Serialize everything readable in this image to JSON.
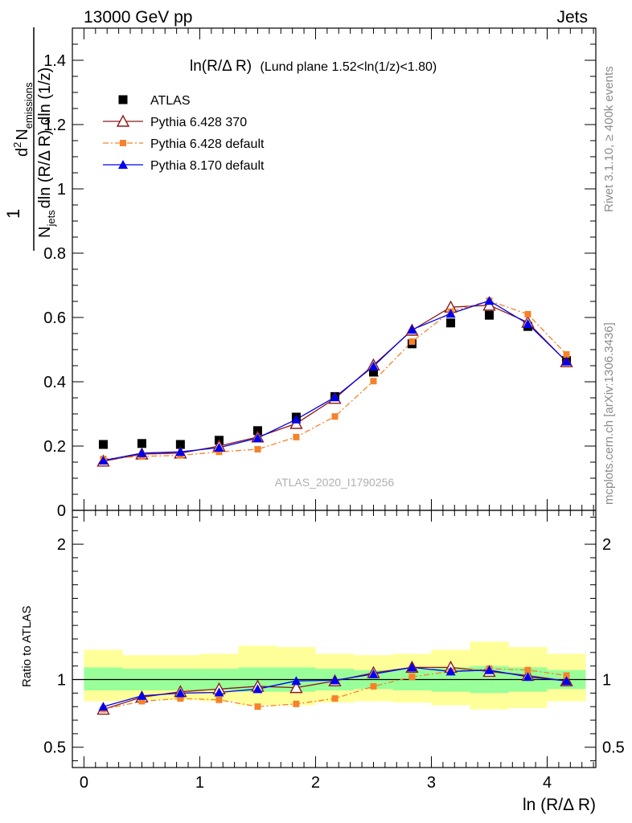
{
  "header": {
    "left": "13000 GeV pp",
    "right": "Jets"
  },
  "side_labels": {
    "rivet": "Rivet 3.1.10, ≥ 400k events",
    "mcplots": "mcplots.cern.ch [arXiv:1306.3436]"
  },
  "watermark": "ATLAS_2020_I1790256",
  "chart_data": [
    {
      "type": "line",
      "panel": "main",
      "title_main": "ln(R/Δ R)",
      "title_rest": "(Lund plane 1.52<ln(1/z)<1.80)",
      "ylabel_parts": {
        "one": "1",
        "d": "d",
        "sup": "2",
        "n": "N",
        "n_sub": "emissions",
        "den_n": "N",
        "den_sub": "jets",
        "den_rest": "dln (R/Δ R) dln (1/z)"
      },
      "xlim": [
        -0.1,
        4.42
      ],
      "ylim": [
        0,
        1.5
      ],
      "yticks": [
        0,
        0.2,
        0.4,
        0.6,
        0.8,
        1,
        1.2,
        1.4
      ],
      "ytick_labels": [
        "0",
        "0.2",
        "0.4",
        "0.6",
        "0.8",
        "1",
        "1.2",
        "1.4"
      ],
      "x": [
        0.167,
        0.5,
        0.833,
        1.167,
        1.5,
        1.833,
        2.167,
        2.5,
        2.833,
        3.167,
        3.5,
        3.833,
        4.167
      ],
      "legend_position": "top-left",
      "series": [
        {
          "name": "ATLAS",
          "style": "data",
          "color": "#000000",
          "values": [
            0.205,
            0.208,
            0.205,
            0.218,
            0.248,
            0.29,
            0.354,
            0.43,
            0.518,
            0.583,
            0.607,
            0.572,
            0.466
          ]
        },
        {
          "name": "Pythia 6.428 370",
          "style": "open-triangle",
          "color": "#8b1a1a",
          "values": [
            0.153,
            0.175,
            0.178,
            0.2,
            0.228,
            0.27,
            0.348,
            0.452,
            0.56,
            0.632,
            0.638,
            0.585,
            0.462
          ]
        },
        {
          "name": "Pythia 6.428 default",
          "style": "orange-square-dashdot",
          "color": "#f5822a",
          "values": [
            0.16,
            0.168,
            0.171,
            0.182,
            0.19,
            0.228,
            0.292,
            0.402,
            0.525,
            0.618,
            0.652,
            0.61,
            0.485
          ]
        },
        {
          "name": "Pythia 8.170 default",
          "style": "filled-triangle",
          "color": "#0000ee",
          "values": [
            0.155,
            0.178,
            0.182,
            0.195,
            0.225,
            0.283,
            0.352,
            0.448,
            0.562,
            0.612,
            0.652,
            0.58,
            0.463
          ]
        }
      ]
    },
    {
      "type": "line",
      "panel": "ratio",
      "ylabel": "Ratio to ATLAS",
      "xlabel": "ln (R/Δ R)",
      "xlim": [
        -0.1,
        4.42
      ],
      "ylim": [
        0.35,
        2.25
      ],
      "xticks": [
        0,
        1,
        2,
        3,
        4
      ],
      "xtick_labels": [
        "0",
        "1",
        "2",
        "3",
        "4"
      ],
      "yticks": [
        0.5,
        1,
        2
      ],
      "ytick_labels": [
        "0.5",
        "1",
        "2"
      ],
      "bin_edges": [
        0,
        0.333,
        0.667,
        1.0,
        1.333,
        1.667,
        2.0,
        2.333,
        2.667,
        3.0,
        3.333,
        3.667,
        4.0,
        4.333
      ],
      "band_inner": {
        "color": "#99ff99",
        "low": [
          0.92,
          0.92,
          0.92,
          0.92,
          0.91,
          0.91,
          0.92,
          0.93,
          0.92,
          0.91,
          0.9,
          0.91,
          0.93
        ],
        "high": [
          1.09,
          1.08,
          1.08,
          1.08,
          1.09,
          1.09,
          1.08,
          1.07,
          1.08,
          1.09,
          1.1,
          1.09,
          1.07
        ]
      },
      "band_outer": {
        "color": "#ffff99",
        "low": [
          0.84,
          0.85,
          0.85,
          0.84,
          0.81,
          0.81,
          0.83,
          0.84,
          0.83,
          0.81,
          0.78,
          0.79,
          0.84
        ],
        "high": [
          1.22,
          1.18,
          1.18,
          1.19,
          1.25,
          1.24,
          1.19,
          1.18,
          1.19,
          1.22,
          1.28,
          1.24,
          1.19
        ]
      },
      "x": [
        0.167,
        0.5,
        0.833,
        1.167,
        1.5,
        1.833,
        2.167,
        2.5,
        2.833,
        3.167,
        3.5,
        3.833,
        4.167
      ],
      "series": [
        {
          "name": "Pythia 6.428 370",
          "style": "open-triangle",
          "color": "#8b1a1a",
          "values": [
            0.78,
            0.87,
            0.91,
            0.93,
            0.95,
            0.94,
            0.99,
            1.05,
            1.09,
            1.09,
            1.06,
            1.03,
            0.99
          ]
        },
        {
          "name": "Pythia 6.428 default",
          "style": "orange-square-dashdot",
          "color": "#f5822a",
          "values": [
            0.78,
            0.84,
            0.86,
            0.85,
            0.8,
            0.82,
            0.86,
            0.95,
            1.02,
            1.06,
            1.08,
            1.07,
            1.03
          ]
        },
        {
          "name": "Pythia 8.170 default",
          "style": "filled-triangle",
          "color": "#0000ee",
          "values": [
            0.8,
            0.88,
            0.9,
            0.905,
            0.93,
            0.99,
            0.995,
            1.04,
            1.09,
            1.06,
            1.07,
            1.02,
            0.99
          ]
        }
      ]
    }
  ]
}
